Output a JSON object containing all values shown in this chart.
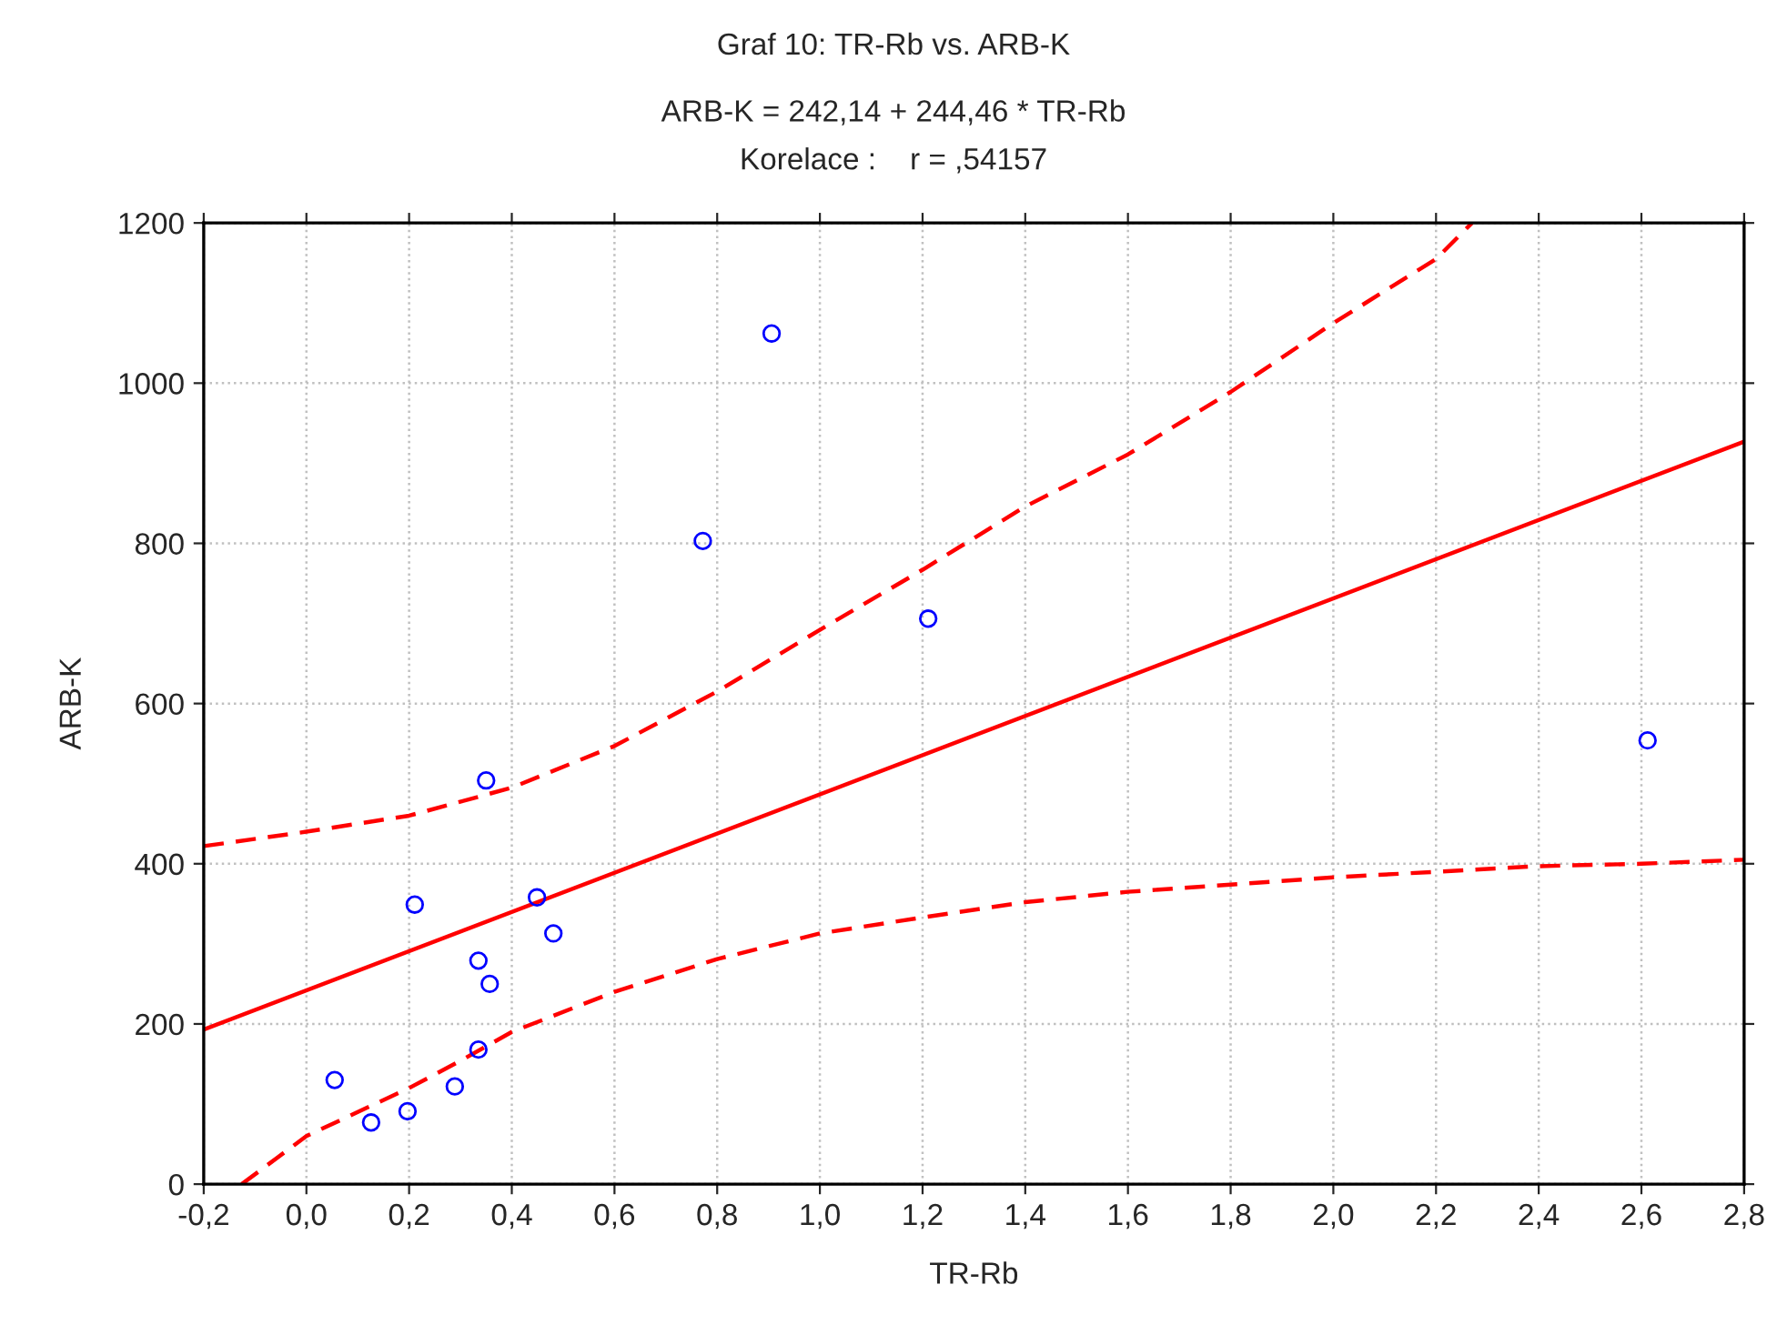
{
  "chart_data": {
    "type": "scatter",
    "title": "Graf 10: TR-Rb vs. ARB-K",
    "subtitle": "ARB-K = 242,14 + 244,46 * TR-Rb\nKorelace :    r = ,54157",
    "xlabel": "TR-Rb",
    "ylabel": "ARB-K",
    "series": [
      {
        "color": "#0000ff",
        "marker": "circle",
        "x": [
          0.055,
          0.126,
          0.197,
          0.211,
          0.289,
          0.335,
          0.335,
          0.35,
          0.357,
          0.449,
          0.481,
          0.772,
          0.906,
          1.211,
          2.612
        ],
        "values": [
          130,
          77,
          91,
          349,
          122,
          279,
          168,
          504,
          250,
          358,
          313,
          803,
          1062,
          706,
          554
        ]
      },
      {
        "type": "line",
        "color": "#ff0000",
        "line_style": "solid",
        "x": [
          -0.2,
          2.8
        ],
        "values": [
          193,
          927
        ]
      },
      {
        "type": "line",
        "color": "#ff0000",
        "line_style": "dashed",
        "x": [
          -0.2,
          0.0,
          0.2,
          0.4,
          0.6,
          0.8,
          1.0,
          1.2,
          1.4,
          1.6,
          1.8,
          2.0,
          2.2,
          2.27
        ],
        "values": [
          422,
          440,
          460,
          495,
          547,
          615,
          692,
          767,
          846,
          911,
          989,
          1075,
          1155,
          1200
        ]
      },
      {
        "type": "line",
        "color": "#ff0000",
        "line_style": "dashed",
        "x": [
          -0.126,
          0.0,
          0.2,
          0.3,
          0.4,
          0.6,
          0.8,
          1.0,
          1.2,
          1.4,
          1.6,
          1.8,
          2.0,
          2.2,
          2.4,
          2.6,
          2.8
        ],
        "values": [
          0,
          60,
          120,
          154,
          190,
          240,
          281,
          313,
          333,
          352,
          365,
          374,
          383,
          390,
          397,
          400,
          405
        ]
      }
    ],
    "xlim": [
      -0.2,
      2.8
    ],
    "ylim": [
      0,
      1200
    ],
    "xticks": [
      {
        "value": -0.2,
        "label": "-0,2"
      },
      {
        "value": 0.0,
        "label": "0,0"
      },
      {
        "value": 0.2,
        "label": "0,2"
      },
      {
        "value": 0.4,
        "label": "0,4"
      },
      {
        "value": 0.6,
        "label": "0,6"
      },
      {
        "value": 0.8,
        "label": "0,8"
      },
      {
        "value": 1.0,
        "label": "1,0"
      },
      {
        "value": 1.2,
        "label": "1,2"
      },
      {
        "value": 1.4,
        "label": "1,4"
      },
      {
        "value": 1.6,
        "label": "1,6"
      },
      {
        "value": 1.8,
        "label": "1,8"
      },
      {
        "value": 2.0,
        "label": "2,0"
      },
      {
        "value": 2.2,
        "label": "2,2"
      },
      {
        "value": 2.4,
        "label": "2,4"
      },
      {
        "value": 2.6,
        "label": "2,6"
      },
      {
        "value": 2.8,
        "label": "2,8"
      }
    ],
    "yticks": [
      0,
      200,
      400,
      600,
      800,
      1000,
      1200
    ],
    "grid": true
  }
}
